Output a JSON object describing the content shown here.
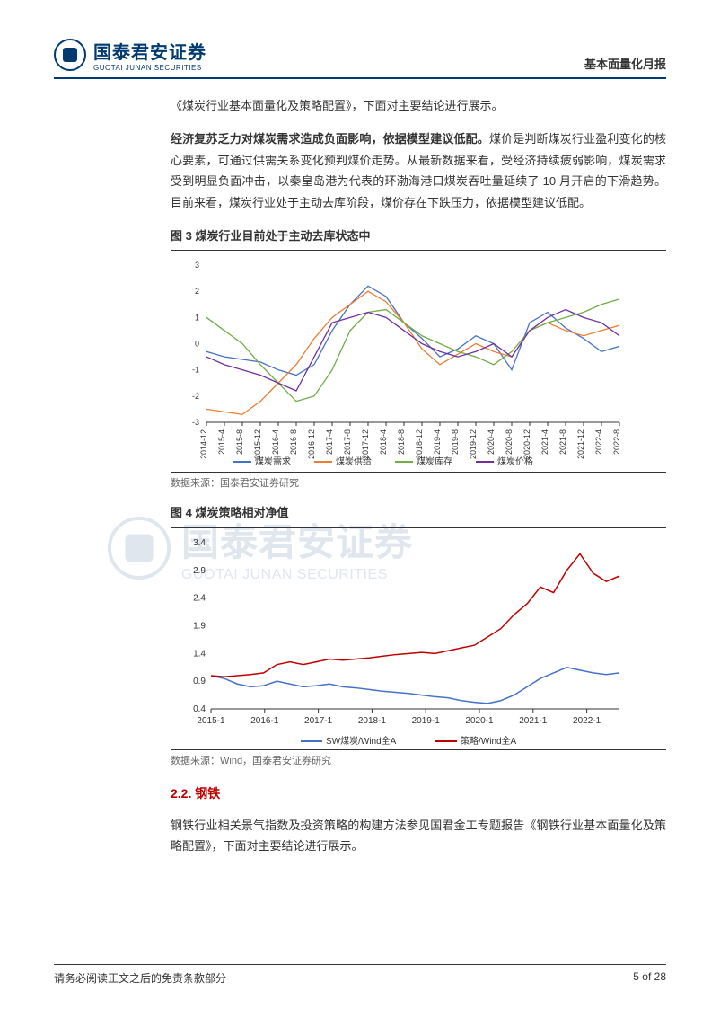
{
  "header": {
    "logo_cn": "国泰君安证券",
    "logo_en": "GUOTAI JUNAN SECURITIES",
    "right": "基本面量化月报"
  },
  "intro_para": "《煤炭行业基本面量化及策略配置》，下面对主要结论进行展示。",
  "para2_bold": "经济复苏乏力对煤炭需求造成负面影响，依据模型建议低配。",
  "para2_rest": "煤价是判断煤炭行业盈利变化的核心要素，可通过供需关系变化预判煤价走势。从最新数据来看，受经济持续疲弱影响，煤炭需求受到明显负面冲击，以秦皇岛港为代表的环渤海港口煤炭吞吐量延续了 10 月开启的下滑趋势。目前来看，煤炭行业处于主动去库阶段，煤价存在下跌压力，依据模型建议低配。",
  "chart3": {
    "title": "图 3 煤炭行业目前处于主动去库状态中",
    "type": "line",
    "ylim": [
      -3,
      3
    ],
    "yticks": [
      -3,
      -2,
      -1,
      0,
      1,
      2,
      3
    ],
    "xlabels": [
      "2014-12",
      "2015-4",
      "2015-8",
      "2015-12",
      "2016-4",
      "2016-8",
      "2016-12",
      "2017-4",
      "2017-8",
      "2017-12",
      "2018-4",
      "2018-8",
      "2018-12",
      "2019-4",
      "2019-8",
      "2019-12",
      "2020-4",
      "2020-8",
      "2020-12",
      "2021-4",
      "2021-8",
      "2021-12",
      "2022-4",
      "2022-8"
    ],
    "label_fontsize": 9,
    "background_color": "#ffffff",
    "series": {
      "demand": {
        "label": "煤炭需求",
        "color": "#4472c4",
        "values": [
          -0.3,
          -0.5,
          -0.6,
          -0.7,
          -1.0,
          -1.2,
          -0.8,
          0.5,
          1.5,
          2.2,
          1.8,
          0.8,
          0.2,
          -0.5,
          -0.2,
          0.3,
          0.0,
          -1.0,
          0.8,
          1.2,
          0.6,
          0.2,
          -0.3,
          -0.1
        ]
      },
      "supply": {
        "label": "煤炭供给",
        "color": "#ed7d31",
        "values": [
          -2.5,
          -2.6,
          -2.7,
          -2.2,
          -1.5,
          -0.8,
          0.2,
          1.0,
          1.5,
          2.0,
          1.6,
          0.8,
          -0.2,
          -0.8,
          -0.4,
          0.0,
          -0.3,
          -0.5,
          0.5,
          0.8,
          0.5,
          0.3,
          0.5,
          0.7
        ]
      },
      "inventory": {
        "label": "煤炭库存",
        "color": "#70ad47",
        "values": [
          1.0,
          0.5,
          0.0,
          -0.8,
          -1.5,
          -2.2,
          -2.0,
          -1.0,
          0.5,
          1.2,
          1.3,
          0.8,
          0.3,
          0.0,
          -0.3,
          -0.5,
          -0.8,
          -0.3,
          0.5,
          0.8,
          1.0,
          1.2,
          1.5,
          1.7
        ]
      },
      "price": {
        "label": "煤炭价格",
        "color": "#7030a0",
        "values": [
          -0.5,
          -0.8,
          -1.0,
          -1.2,
          -1.5,
          -1.8,
          -0.5,
          0.8,
          1.0,
          1.2,
          1.0,
          0.5,
          0.0,
          -0.3,
          -0.5,
          -0.3,
          0.0,
          -0.5,
          0.5,
          1.0,
          1.3,
          1.0,
          0.8,
          0.3
        ]
      }
    },
    "source": "数据来源：国泰君安证券研究"
  },
  "chart4": {
    "title": "图 4 煤炭策略相对净值",
    "type": "line",
    "ylim": [
      0.4,
      3.4
    ],
    "yticks": [
      0.4,
      0.9,
      1.4,
      1.9,
      2.4,
      2.9,
      3.4
    ],
    "xlabels": [
      "2015-1",
      "2016-1",
      "2017-1",
      "2018-1",
      "2019-1",
      "2020-1",
      "2021-1",
      "2022-1"
    ],
    "label_fontsize": 10,
    "background_color": "#ffffff",
    "series": {
      "sw": {
        "label": "SW煤炭/Wind全A",
        "color": "#4472c4",
        "values_x": [
          0,
          1,
          2,
          3,
          4,
          5,
          6,
          7,
          8,
          9,
          10,
          11,
          12,
          13,
          14,
          15,
          16,
          17,
          18,
          19,
          20,
          21,
          22,
          23,
          24,
          25,
          26,
          27,
          28,
          29,
          30,
          31
        ],
        "values_y": [
          1.0,
          0.95,
          0.85,
          0.8,
          0.82,
          0.9,
          0.85,
          0.8,
          0.82,
          0.85,
          0.8,
          0.78,
          0.75,
          0.72,
          0.7,
          0.68,
          0.65,
          0.62,
          0.6,
          0.55,
          0.52,
          0.5,
          0.55,
          0.65,
          0.8,
          0.95,
          1.05,
          1.15,
          1.1,
          1.05,
          1.02,
          1.05
        ]
      },
      "strategy": {
        "label": "策略/Wind全A",
        "color": "#c00000",
        "values_x": [
          0,
          1,
          2,
          3,
          4,
          5,
          6,
          7,
          8,
          9,
          10,
          11,
          12,
          13,
          14,
          15,
          16,
          17,
          18,
          19,
          20,
          21,
          22,
          23,
          24,
          25,
          26,
          27,
          28,
          29,
          30,
          31
        ],
        "values_y": [
          1.0,
          0.98,
          1.0,
          1.02,
          1.05,
          1.2,
          1.25,
          1.2,
          1.25,
          1.3,
          1.28,
          1.3,
          1.32,
          1.35,
          1.38,
          1.4,
          1.42,
          1.4,
          1.45,
          1.5,
          1.55,
          1.7,
          1.85,
          2.1,
          2.3,
          2.6,
          2.5,
          2.9,
          3.2,
          2.85,
          2.7,
          2.8
        ]
      }
    },
    "source": "数据来源：Wind，国泰君安证券研究"
  },
  "section2_2": {
    "heading": "2.2. 钢铁",
    "para": "钢铁行业相关景气指数及投资策略的构建方法参见国君金工专题报告《钢铁行业基本面量化及策略配置》，下面对主要结论进行展示。"
  },
  "footer": {
    "left": "请务必阅读正文之后的免责条款部分",
    "right": "5 of 28"
  }
}
